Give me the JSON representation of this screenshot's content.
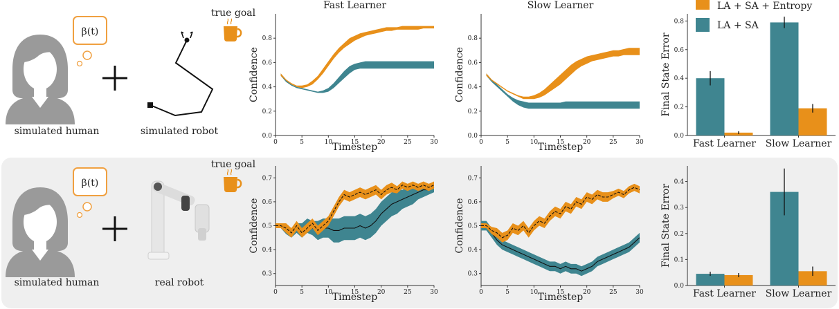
{
  "rows": [
    {
      "human_label": "simulated human",
      "robot_label": "simulated robot",
      "goal_label": "true goal",
      "thought_label": "β(t)"
    },
    {
      "human_label": "simulated human",
      "robot_label": "real robot",
      "goal_label": "true goal",
      "thought_label": "β(t)"
    }
  ],
  "colors": {
    "la_sa_entropy": "#e8901a",
    "la_sa": "#3f8590",
    "human": "#9a9a9a",
    "thought": "#f0a040",
    "panel_bg": "#efefef"
  },
  "legend": [
    {
      "label": "LA + SA + Entropy",
      "color": "#e8901a"
    },
    {
      "label": "LA + SA",
      "color": "#3f8590"
    }
  ],
  "chart_data": [
    {
      "id": "top-fast",
      "type": "area",
      "title": "Fast Learner",
      "xlabel": "Timestep",
      "ylabel": "Confidence",
      "xlim": [
        0,
        30
      ],
      "ylim": [
        0,
        1.0
      ],
      "xticks": [
        0,
        5,
        10,
        15,
        20,
        25,
        30
      ],
      "yticks": [
        0.0,
        0.2,
        0.4,
        0.6,
        0.8
      ],
      "x": [
        1,
        2,
        3,
        4,
        5,
        6,
        7,
        8,
        9,
        10,
        11,
        12,
        13,
        14,
        15,
        16,
        17,
        18,
        19,
        20,
        21,
        22,
        23,
        24,
        25,
        26,
        27,
        28,
        29,
        30
      ],
      "series": [
        {
          "name": "LA + SA + Entropy",
          "color": "#e8901a",
          "lower": [
            0.49,
            0.45,
            0.42,
            0.4,
            0.39,
            0.4,
            0.42,
            0.46,
            0.51,
            0.57,
            0.63,
            0.68,
            0.72,
            0.75,
            0.78,
            0.8,
            0.82,
            0.83,
            0.84,
            0.85,
            0.86,
            0.86,
            0.87,
            0.87,
            0.87,
            0.87,
            0.87,
            0.88,
            0.88,
            0.88
          ],
          "upper": [
            0.51,
            0.46,
            0.43,
            0.41,
            0.41,
            0.42,
            0.45,
            0.49,
            0.55,
            0.61,
            0.67,
            0.72,
            0.76,
            0.8,
            0.82,
            0.84,
            0.85,
            0.86,
            0.87,
            0.88,
            0.89,
            0.89,
            0.89,
            0.9,
            0.9,
            0.9,
            0.9,
            0.9,
            0.9,
            0.9
          ]
        },
        {
          "name": "LA + SA",
          "color": "#3f8590",
          "lower": [
            0.49,
            0.44,
            0.41,
            0.39,
            0.38,
            0.37,
            0.36,
            0.35,
            0.35,
            0.36,
            0.39,
            0.43,
            0.47,
            0.51,
            0.54,
            0.55,
            0.55,
            0.55,
            0.55,
            0.55,
            0.55,
            0.55,
            0.55,
            0.55,
            0.55,
            0.55,
            0.55,
            0.55,
            0.55,
            0.55
          ],
          "upper": [
            0.51,
            0.46,
            0.42,
            0.4,
            0.39,
            0.38,
            0.37,
            0.36,
            0.37,
            0.39,
            0.43,
            0.48,
            0.53,
            0.57,
            0.59,
            0.6,
            0.61,
            0.61,
            0.61,
            0.61,
            0.61,
            0.61,
            0.61,
            0.61,
            0.61,
            0.61,
            0.61,
            0.61,
            0.61,
            0.61
          ]
        }
      ]
    },
    {
      "id": "top-slow",
      "type": "area",
      "title": "Slow Learner",
      "xlabel": "Timestep",
      "ylabel": "Confidence",
      "xlim": [
        0,
        30
      ],
      "ylim": [
        0,
        1.0
      ],
      "xticks": [
        0,
        5,
        10,
        15,
        20,
        25,
        30
      ],
      "yticks": [
        0.0,
        0.2,
        0.4,
        0.6,
        0.8
      ],
      "x": [
        1,
        2,
        3,
        4,
        5,
        6,
        7,
        8,
        9,
        10,
        11,
        12,
        13,
        14,
        15,
        16,
        17,
        18,
        19,
        20,
        21,
        22,
        23,
        24,
        25,
        26,
        27,
        28,
        29,
        30
      ],
      "series": [
        {
          "name": "LA + SA + Entropy",
          "color": "#e8901a",
          "lower": [
            0.49,
            0.45,
            0.42,
            0.39,
            0.36,
            0.34,
            0.32,
            0.3,
            0.3,
            0.3,
            0.31,
            0.33,
            0.36,
            0.39,
            0.42,
            0.46,
            0.5,
            0.54,
            0.57,
            0.59,
            0.61,
            0.62,
            0.63,
            0.64,
            0.65,
            0.65,
            0.66,
            0.66,
            0.66,
            0.66
          ],
          "upper": [
            0.51,
            0.46,
            0.43,
            0.4,
            0.37,
            0.35,
            0.33,
            0.32,
            0.32,
            0.33,
            0.35,
            0.38,
            0.42,
            0.46,
            0.5,
            0.54,
            0.58,
            0.61,
            0.63,
            0.65,
            0.66,
            0.67,
            0.68,
            0.69,
            0.7,
            0.7,
            0.71,
            0.72,
            0.72,
            0.72
          ]
        },
        {
          "name": "LA + SA",
          "color": "#3f8590",
          "lower": [
            0.49,
            0.44,
            0.4,
            0.36,
            0.32,
            0.28,
            0.25,
            0.23,
            0.22,
            0.22,
            0.22,
            0.22,
            0.22,
            0.22,
            0.22,
            0.22,
            0.22,
            0.22,
            0.22,
            0.22,
            0.22,
            0.22,
            0.22,
            0.22,
            0.22,
            0.22,
            0.22,
            0.22,
            0.22,
            0.22
          ],
          "upper": [
            0.51,
            0.46,
            0.42,
            0.38,
            0.34,
            0.31,
            0.29,
            0.28,
            0.27,
            0.27,
            0.27,
            0.27,
            0.27,
            0.27,
            0.27,
            0.28,
            0.28,
            0.28,
            0.28,
            0.28,
            0.28,
            0.28,
            0.28,
            0.28,
            0.28,
            0.28,
            0.28,
            0.28,
            0.28,
            0.28
          ]
        }
      ]
    },
    {
      "id": "top-bars",
      "type": "bar",
      "ylabel": "Final State Error",
      "categories": [
        "Fast Learner",
        "Slow Learner"
      ],
      "ylim": [
        0,
        0.85
      ],
      "yticks": [
        0.0,
        0.2,
        0.4,
        0.6,
        0.8
      ],
      "series": [
        {
          "name": "LA + SA",
          "color": "#3f8590",
          "values": [
            0.4,
            0.79
          ],
          "errors": [
            0.05,
            0.04
          ]
        },
        {
          "name": "LA + SA + Entropy",
          "color": "#e8901a",
          "values": [
            0.02,
            0.19
          ],
          "errors": [
            0.01,
            0.03
          ]
        }
      ]
    },
    {
      "id": "bottom-fast",
      "type": "area",
      "xlabel": "Timestep",
      "ylabel": "Confidence",
      "xlim": [
        0,
        30
      ],
      "ylim": [
        0.25,
        0.75
      ],
      "xticks": [
        0,
        5,
        10,
        15,
        20,
        25,
        30
      ],
      "yticks": [
        0.3,
        0.4,
        0.5,
        0.6,
        0.7
      ],
      "x": [
        0,
        1,
        2,
        3,
        4,
        5,
        6,
        7,
        8,
        9,
        10,
        11,
        12,
        13,
        14,
        15,
        16,
        17,
        18,
        19,
        20,
        21,
        22,
        23,
        24,
        25,
        26,
        27,
        28,
        29,
        30
      ],
      "series": [
        {
          "name": "LA + SA + Entropy",
          "color": "#e8901a",
          "line": "dashed",
          "mean": [
            0.5,
            0.5,
            0.49,
            0.47,
            0.5,
            0.47,
            0.49,
            0.51,
            0.48,
            0.5,
            0.52,
            0.56,
            0.6,
            0.63,
            0.62,
            0.63,
            0.64,
            0.63,
            0.64,
            0.65,
            0.63,
            0.65,
            0.66,
            0.65,
            0.67,
            0.66,
            0.67,
            0.66,
            0.67,
            0.66,
            0.67
          ],
          "half_width": [
            0.01,
            0.01,
            0.02,
            0.02,
            0.02,
            0.02,
            0.02,
            0.02,
            0.02,
            0.02,
            0.02,
            0.02,
            0.02,
            0.02,
            0.02,
            0.02,
            0.02,
            0.02,
            0.02,
            0.02,
            0.02,
            0.02,
            0.02,
            0.015,
            0.015,
            0.015,
            0.015,
            0.015,
            0.015,
            0.015,
            0.015
          ]
        },
        {
          "name": "LA + SA",
          "color": "#3f8590",
          "line": "solid",
          "mean": [
            0.5,
            0.5,
            0.48,
            0.47,
            0.49,
            0.48,
            0.5,
            0.49,
            0.48,
            0.49,
            0.49,
            0.48,
            0.48,
            0.49,
            0.49,
            0.49,
            0.5,
            0.49,
            0.5,
            0.52,
            0.55,
            0.57,
            0.59,
            0.6,
            0.61,
            0.62,
            0.63,
            0.64,
            0.65,
            0.65,
            0.66
          ],
          "half_width": [
            0.01,
            0.01,
            0.015,
            0.02,
            0.02,
            0.03,
            0.03,
            0.03,
            0.04,
            0.04,
            0.04,
            0.05,
            0.05,
            0.05,
            0.05,
            0.05,
            0.05,
            0.05,
            0.05,
            0.05,
            0.05,
            0.05,
            0.05,
            0.05,
            0.04,
            0.04,
            0.04,
            0.03,
            0.03,
            0.02,
            0.02
          ]
        }
      ]
    },
    {
      "id": "bottom-slow",
      "type": "area",
      "xlabel": "Timestep",
      "ylabel": "Confidence",
      "xlim": [
        0,
        30
      ],
      "ylim": [
        0.25,
        0.75
      ],
      "xticks": [
        0,
        5,
        10,
        15,
        20,
        25,
        30
      ],
      "yticks": [
        0.3,
        0.4,
        0.5,
        0.6,
        0.7
      ],
      "x": [
        0,
        1,
        2,
        3,
        4,
        5,
        6,
        7,
        8,
        9,
        10,
        11,
        12,
        13,
        14,
        15,
        16,
        17,
        18,
        19,
        20,
        21,
        22,
        23,
        24,
        25,
        26,
        27,
        28,
        29,
        30
      ],
      "series": [
        {
          "name": "LA + SA + Entropy",
          "color": "#e8901a",
          "line": "dashed",
          "mean": [
            0.5,
            0.5,
            0.48,
            0.47,
            0.45,
            0.46,
            0.49,
            0.48,
            0.5,
            0.47,
            0.5,
            0.52,
            0.51,
            0.54,
            0.56,
            0.55,
            0.58,
            0.57,
            0.6,
            0.59,
            0.62,
            0.61,
            0.63,
            0.62,
            0.62,
            0.63,
            0.64,
            0.63,
            0.65,
            0.66,
            0.65
          ],
          "half_width": [
            0.01,
            0.01,
            0.015,
            0.02,
            0.02,
            0.02,
            0.02,
            0.02,
            0.02,
            0.02,
            0.02,
            0.02,
            0.02,
            0.02,
            0.02,
            0.02,
            0.02,
            0.02,
            0.02,
            0.02,
            0.02,
            0.02,
            0.02,
            0.02,
            0.02,
            0.015,
            0.015,
            0.015,
            0.015,
            0.015,
            0.015
          ]
        },
        {
          "name": "LA + SA",
          "color": "#3f8590",
          "line": "solid",
          "mean": [
            0.5,
            0.5,
            0.47,
            0.44,
            0.42,
            0.41,
            0.4,
            0.39,
            0.38,
            0.37,
            0.36,
            0.35,
            0.34,
            0.33,
            0.33,
            0.32,
            0.33,
            0.32,
            0.32,
            0.31,
            0.32,
            0.33,
            0.35,
            0.36,
            0.37,
            0.38,
            0.39,
            0.4,
            0.41,
            0.43,
            0.45
          ]
        },
        {
          "note": ""
        }
      ]
    },
    {
      "id": "bottom-bars",
      "type": "bar",
      "ylabel": "Final State Error",
      "categories": [
        "Fast Learner",
        "Slow Learner"
      ],
      "ylim": [
        0,
        0.46
      ],
      "yticks": [
        0.0,
        0.1,
        0.2,
        0.3,
        0.4
      ],
      "series": [
        {
          "name": "LA + SA",
          "color": "#3f8590",
          "values": [
            0.045,
            0.36
          ],
          "errors": [
            0.008,
            0.09
          ]
        },
        {
          "name": "LA + SA + Entropy",
          "color": "#e8901a",
          "values": [
            0.04,
            0.055
          ],
          "errors": [
            0.008,
            0.018
          ]
        }
      ]
    }
  ]
}
